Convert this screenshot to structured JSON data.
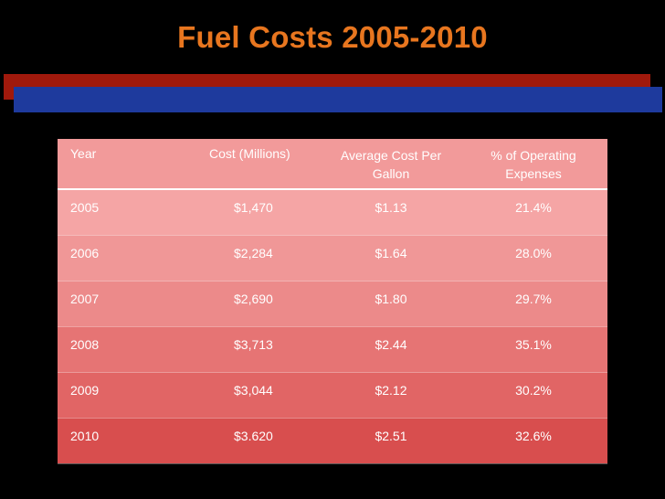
{
  "title": "Fuel Costs 2005-2010",
  "colors": {
    "title": "#e8761f",
    "accent_bar_red": "#a0190c",
    "accent_bar_blue": "#1e3a9d",
    "table_header": "#f29a9a",
    "table_row_last": "#d84e4e"
  },
  "table": {
    "headers": [
      "Year",
      "Cost (Millions)",
      "Average Cost Per Gallon",
      "% of Operating Expenses"
    ],
    "rows": [
      [
        "2005",
        "$1,470",
        "$1.13",
        "21.4%"
      ],
      [
        "2006",
        "$2,284",
        "$1.64",
        "28.0%"
      ],
      [
        "2007",
        "$2,690",
        "$1.80",
        "29.7%"
      ],
      [
        "2008",
        "$3,713",
        "$2.44",
        "35.1%"
      ],
      [
        "2009",
        "$3,044",
        "$2.12",
        "30.2%"
      ],
      [
        "2010",
        "$3.620",
        "$2.51",
        "32.6%"
      ]
    ]
  }
}
